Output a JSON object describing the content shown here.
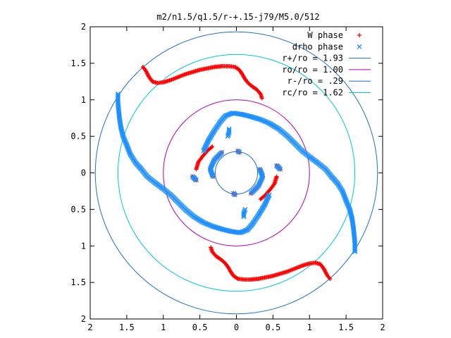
{
  "chart_data": {
    "type": "scatter",
    "title": "m2/n1.5/q1.5/r-+.15-j79/M5.0/512",
    "xlabel": "",
    "ylabel": "",
    "xlim": [
      -2,
      2
    ],
    "ylim": [
      -2,
      2
    ],
    "x_ticks": [
      -2,
      -1.5,
      -1,
      -0.5,
      0,
      0.5,
      1,
      1.5,
      2
    ],
    "y_ticks": [
      -2,
      -1.5,
      -1,
      -0.5,
      0,
      0.5,
      1,
      1.5,
      2
    ],
    "x_tick_labels": [
      "2",
      "1.5",
      "1",
      "0.5",
      "0",
      "0.5",
      "1",
      "1.5",
      "2"
    ],
    "y_tick_labels": [
      "2",
      "1.5",
      "1",
      "0.5",
      "0",
      "0.5",
      "1",
      "1.5",
      "2"
    ],
    "grid": false,
    "legend_position": "top-right",
    "series": [
      {
        "name": "W phase",
        "kind": "points",
        "marker": "+",
        "color": "#ff0000",
        "arms": [
          [
            [
              -1.28,
              1.45
            ],
            [
              -1.24,
              1.4
            ],
            [
              -1.2,
              1.32
            ],
            [
              -1.15,
              1.25
            ],
            [
              -1.08,
              1.23
            ],
            [
              -1.0,
              1.24
            ],
            [
              -0.9,
              1.27
            ],
            [
              -0.8,
              1.31
            ],
            [
              -0.7,
              1.35
            ],
            [
              -0.6,
              1.38
            ],
            [
              -0.5,
              1.41
            ],
            [
              -0.4,
              1.43
            ],
            [
              -0.3,
              1.45
            ],
            [
              -0.2,
              1.46
            ],
            [
              -0.1,
              1.46
            ],
            [
              -0.02,
              1.45
            ],
            [
              0.04,
              1.41
            ],
            [
              0.08,
              1.35
            ],
            [
              0.12,
              1.28
            ],
            [
              0.17,
              1.22
            ],
            [
              0.22,
              1.18
            ],
            [
              0.28,
              1.14
            ],
            [
              0.33,
              1.08
            ],
            [
              0.35,
              1.02
            ]
          ],
          [
            [
              1.28,
              -1.45
            ],
            [
              1.24,
              -1.4
            ],
            [
              1.2,
              -1.32
            ],
            [
              1.15,
              -1.25
            ],
            [
              1.08,
              -1.23
            ],
            [
              1.0,
              -1.24
            ],
            [
              0.9,
              -1.27
            ],
            [
              0.8,
              -1.31
            ],
            [
              0.7,
              -1.35
            ],
            [
              0.6,
              -1.38
            ],
            [
              0.5,
              -1.41
            ],
            [
              0.4,
              -1.43
            ],
            [
              0.3,
              -1.45
            ],
            [
              0.2,
              -1.46
            ],
            [
              0.1,
              -1.46
            ],
            [
              0.02,
              -1.45
            ],
            [
              -0.04,
              -1.41
            ],
            [
              -0.08,
              -1.35
            ],
            [
              -0.12,
              -1.28
            ],
            [
              -0.17,
              -1.22
            ],
            [
              -0.22,
              -1.18
            ],
            [
              -0.28,
              -1.14
            ],
            [
              -0.33,
              -1.08
            ],
            [
              -0.35,
              -1.02
            ]
          ],
          [
            [
              0.02,
              0.3
            ],
            [
              0.04,
              0.28
            ]
          ],
          [
            [
              -0.02,
              -0.3
            ],
            [
              -0.04,
              -0.28
            ]
          ],
          [
            [
              -0.55,
              0.05
            ],
            [
              -0.52,
              0.15
            ],
            [
              -0.46,
              0.23
            ],
            [
              -0.4,
              0.3
            ],
            [
              -0.33,
              0.36
            ]
          ],
          [
            [
              0.55,
              -0.05
            ],
            [
              0.52,
              -0.15
            ],
            [
              0.46,
              -0.23
            ],
            [
              0.4,
              -0.3
            ],
            [
              0.33,
              -0.36
            ]
          ],
          [
            [
              0.32,
              0.05
            ],
            [
              0.36,
              -0.05
            ],
            [
              0.3,
              -0.18
            ],
            [
              0.2,
              -0.28
            ]
          ],
          [
            [
              -0.32,
              -0.05
            ],
            [
              -0.36,
              0.05
            ],
            [
              -0.3,
              0.18
            ],
            [
              -0.2,
              0.28
            ]
          ],
          [
            [
              -0.6,
              -0.05
            ],
            [
              -0.55,
              -0.1
            ]
          ],
          [
            [
              0.6,
              0.05
            ],
            [
              0.55,
              0.1
            ]
          ]
        ]
      },
      {
        "name": "drho phase",
        "kind": "points",
        "marker": "x",
        "color": "#1e90ff",
        "arms": [
          [
            [
              -1.62,
              1.08
            ],
            [
              -1.62,
              0.95
            ],
            [
              -1.61,
              0.85
            ],
            [
              -1.6,
              0.75
            ],
            [
              -1.58,
              0.62
            ],
            [
              -1.55,
              0.5
            ],
            [
              -1.5,
              0.38
            ],
            [
              -1.45,
              0.25
            ],
            [
              -1.38,
              0.14
            ],
            [
              -1.3,
              0.05
            ],
            [
              -1.22,
              -0.05
            ],
            [
              -1.12,
              -0.13
            ],
            [
              -1.0,
              -0.22
            ],
            [
              -0.9,
              -0.3
            ],
            [
              -0.8,
              -0.4
            ],
            [
              -0.7,
              -0.5
            ],
            [
              -0.58,
              -0.6
            ],
            [
              -0.45,
              -0.68
            ],
            [
              -0.33,
              -0.73
            ],
            [
              -0.2,
              -0.77
            ],
            [
              -0.08,
              -0.8
            ],
            [
              0.05,
              -0.82
            ],
            [
              0.15,
              -0.78
            ],
            [
              0.22,
              -0.7
            ],
            [
              0.3,
              -0.58
            ],
            [
              0.38,
              -0.45
            ],
            [
              0.45,
              -0.3
            ]
          ],
          [
            [
              1.62,
              -1.08
            ],
            [
              1.62,
              -0.95
            ],
            [
              1.61,
              -0.85
            ],
            [
              1.6,
              -0.75
            ],
            [
              1.58,
              -0.62
            ],
            [
              1.55,
              -0.5
            ],
            [
              1.5,
              -0.38
            ],
            [
              1.45,
              -0.25
            ],
            [
              1.38,
              -0.14
            ],
            [
              1.3,
              -0.05
            ],
            [
              1.22,
              0.05
            ],
            [
              1.12,
              0.13
            ],
            [
              1.0,
              0.22
            ],
            [
              0.9,
              0.3
            ],
            [
              0.8,
              0.4
            ],
            [
              0.7,
              0.5
            ],
            [
              0.58,
              0.6
            ],
            [
              0.45,
              0.68
            ],
            [
              0.33,
              0.73
            ],
            [
              0.2,
              0.77
            ],
            [
              0.08,
              0.8
            ],
            [
              -0.05,
              0.82
            ],
            [
              -0.15,
              0.78
            ],
            [
              -0.22,
              0.7
            ],
            [
              -0.3,
              0.58
            ],
            [
              -0.38,
              0.45
            ],
            [
              -0.45,
              0.3
            ]
          ],
          [
            [
              -0.1,
              0.6
            ],
            [
              -0.1,
              0.55
            ],
            [
              -0.12,
              0.5
            ]
          ],
          [
            [
              0.1,
              -0.6
            ],
            [
              0.1,
              -0.55
            ],
            [
              0.12,
              -0.5
            ]
          ],
          [
            [
              0.02,
              0.3
            ],
            [
              0.04,
              0.28
            ]
          ],
          [
            [
              -0.02,
              -0.3
            ],
            [
              -0.04,
              -0.28
            ]
          ],
          [
            [
              0.32,
              0.05
            ],
            [
              0.36,
              -0.05
            ],
            [
              0.3,
              -0.18
            ],
            [
              0.2,
              -0.28
            ]
          ],
          [
            [
              -0.32,
              -0.05
            ],
            [
              -0.36,
              0.05
            ],
            [
              -0.3,
              0.18
            ],
            [
              -0.2,
              0.28
            ]
          ],
          [
            [
              -0.6,
              -0.05
            ],
            [
              -0.55,
              -0.1
            ]
          ],
          [
            [
              0.6,
              0.05
            ],
            [
              0.55,
              0.1
            ]
          ]
        ]
      },
      {
        "name": "r+/ro = 1.93",
        "kind": "circle",
        "radius": 1.93,
        "color": "#1e6fd0"
      },
      {
        "name": "ro/ro = 1.00",
        "kind": "circle",
        "radius": 1.0,
        "color": "#b000b0"
      },
      {
        "name": "r-/ro = .29",
        "kind": "circle",
        "radius": 0.29,
        "color": "#1e6fd0"
      },
      {
        "name": "rc/ro = 1.62",
        "kind": "circle",
        "radius": 1.62,
        "color": "#00c8d8"
      }
    ]
  }
}
